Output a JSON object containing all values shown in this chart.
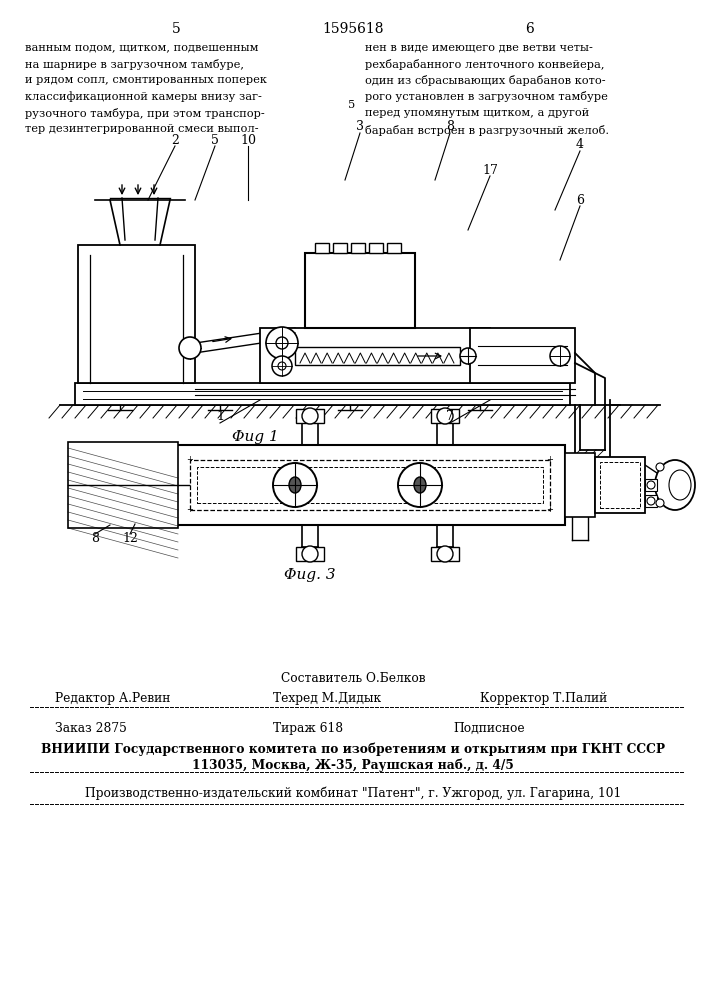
{
  "bg_color": "#ffffff",
  "title_patent": "1595618",
  "page_left": "5",
  "page_right": "6",
  "text_left_col": [
    "ванным подом, щитком, подвешенным",
    "на шарнире в загрузочном тамбуре,",
    "и рядом сопл, смонтированных поперек",
    "классификационной камеры внизу заг-",
    "рузочного тамбура, при этом транспор-",
    "тер дезинтегрированной смеси выпол-"
  ],
  "text_right_col": [
    "нен в виде имеющего две ветви четы-",
    "рехбарабанного ленточного конвейера,",
    "один из сбрасывающих барабанов кото-",
    "рого установлен в загрузочном тамбуре",
    "перед упомянутым щитком, а другой",
    "барабан встроен в разгрузочный желоб."
  ],
  "fig1_label": "Φug 1",
  "fig3_label": "Φug. 3",
  "footer_composer": "Составитель О.Белков",
  "footer_editor": "Редактор А.Ревин",
  "footer_tech": "Техред М.Дидык",
  "footer_corrector": "Корректор Т.Палий",
  "footer_order": "Заказ 2875",
  "footer_print": "Тираж 618",
  "footer_subscr": "Подписное",
  "footer_org1": "ВНИИПИ Государственного комитета по изобретениям и открытиям при ГКНТ СССР",
  "footer_org2": "113035, Москва, Ж-35, Раушская наб., д. 4/5",
  "footer_plant": "Производственно-издательский комбинат \"Патент\", г. Ужгород, ул. Гагарина, 101"
}
